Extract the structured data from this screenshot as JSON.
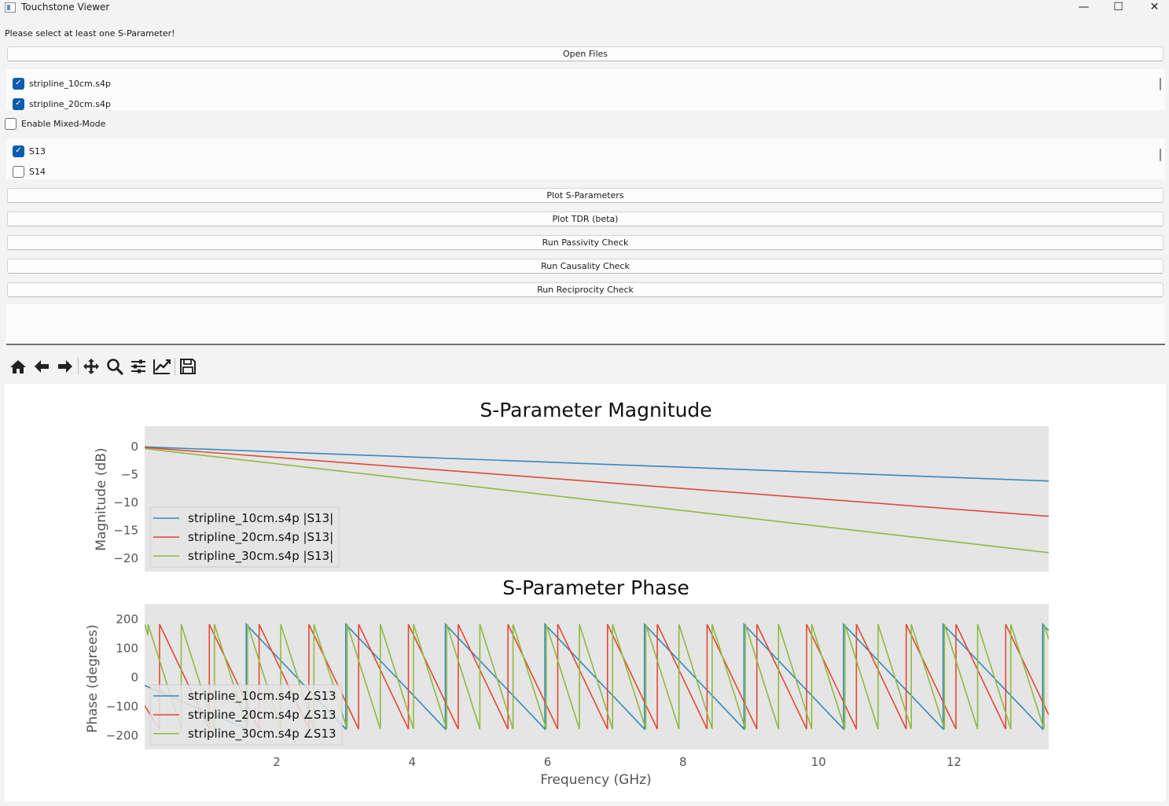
{
  "window": {
    "title": "Touchstone Viewer",
    "minimize": "—",
    "maximize": "☐",
    "close": "✕"
  },
  "status_message": "Please select at least one S-Parameter!",
  "open_files_label": "Open Files",
  "files": [
    {
      "name": "stripline_10cm.s4p",
      "checked": true
    },
    {
      "name": "stripline_20cm.s4p",
      "checked": true
    }
  ],
  "mixed_mode": {
    "label": "Enable Mixed-Mode",
    "checked": false
  },
  "sparams": [
    {
      "name": "S13",
      "checked": true
    },
    {
      "name": "S14",
      "checked": false
    }
  ],
  "actions": {
    "plot_s": "Plot S-Parameters",
    "plot_tdr": "Plot TDR (beta)",
    "passivity": "Run Passivity Check",
    "causality": "Run Causality Check",
    "reciprocity": "Run Reciprocity Check"
  },
  "toolbar_icons": [
    "home-icon",
    "back-arrow-icon",
    "forward-arrow-icon",
    "pan-icon",
    "zoom-icon",
    "configure-subplots-icon",
    "edit-axis-icon",
    "save-icon"
  ],
  "colors": {
    "series_10cm": "#348abd",
    "series_20cm": "#e24a33",
    "series_30cm": "#8eba42",
    "plot_bg": "#e5e5e5",
    "checkbox_accent": "#0b5cad"
  },
  "chart_data": [
    {
      "type": "line",
      "title": "S-Parameter Magnitude",
      "xlabel": "",
      "ylabel": "Magnitude (dB)",
      "xlim": [
        0.05,
        13.4
      ],
      "ylim": [
        -22.5,
        3.5
      ],
      "yticks": [
        0,
        -5,
        -10,
        -15,
        -20
      ],
      "xticks": [],
      "grid": false,
      "legend_position": "lower-left",
      "series": [
        {
          "name": "stripline_10cm.s4p |S13|",
          "x": [
            0.05,
            13.4
          ],
          "y": [
            -0.2,
            -6.3
          ]
        },
        {
          "name": "stripline_20cm.s4p |S13|",
          "x": [
            0.05,
            13.4
          ],
          "y": [
            -0.3,
            -12.6
          ]
        },
        {
          "name": "stripline_30cm.s4p |S13|",
          "x": [
            0.05,
            13.4
          ],
          "y": [
            -0.5,
            -19.1
          ]
        }
      ]
    },
    {
      "type": "line",
      "title": "S-Parameter Phase",
      "xlabel": "Frequency (GHz)",
      "ylabel": "Phase (degrees)",
      "xlim": [
        0.05,
        13.4
      ],
      "ylim": [
        -250,
        250
      ],
      "yticks": [
        200,
        100,
        0,
        -100,
        -200
      ],
      "xticks": [
        2,
        4,
        6,
        8,
        10,
        12
      ],
      "grid": false,
      "legend_position": "lower-left",
      "series": [
        {
          "name": "stripline_10cm.s4p ∠S13",
          "period_ghz": 1.47,
          "wraps_ghz": [
            1.55,
            3.02,
            4.49,
            5.96,
            7.43,
            8.9,
            10.37,
            11.84,
            13.31
          ],
          "phase_at_start": -30
        },
        {
          "name": "stripline_20cm.s4p ∠S13",
          "period_ghz": 0.735,
          "wraps_ghz": [
            0.27,
            1.005,
            1.74,
            2.475,
            3.21,
            3.945,
            4.68,
            5.415,
            6.15,
            6.885,
            7.62,
            8.355,
            9.09,
            9.825,
            10.56,
            11.295,
            12.03,
            12.765
          ],
          "phase_at_start": -100
        },
        {
          "name": "stripline_30cm.s4p ∠S13",
          "period_ghz": 0.49,
          "wraps_ghz": [
            0.1,
            0.59,
            1.08,
            1.57,
            2.06,
            2.55,
            3.04,
            3.53,
            4.02,
            4.51,
            5.0,
            5.49,
            5.98,
            6.47,
            6.96,
            7.45,
            7.94,
            8.43,
            8.92,
            9.41,
            9.9,
            10.39,
            10.88,
            11.37,
            11.86,
            12.35,
            12.84,
            13.33
          ],
          "phase_at_start": 180
        }
      ]
    }
  ]
}
